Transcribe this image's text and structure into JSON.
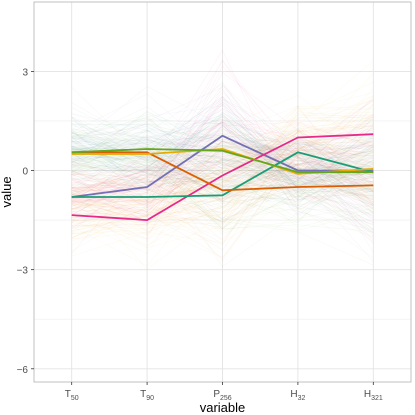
{
  "chart_data": {
    "type": "line",
    "title": "",
    "xlabel": "variable",
    "ylabel": "value",
    "categories": [
      {
        "base": "T",
        "sub": "50"
      },
      {
        "base": "T",
        "sub": "90"
      },
      {
        "base": "P",
        "sub": "256"
      },
      {
        "base": "H",
        "sub": "32"
      },
      {
        "base": "H",
        "sub": "321"
      }
    ],
    "ylim": [
      -6.4,
      5.1
    ],
    "yticks": [
      3,
      0,
      -3,
      -6
    ],
    "ytick_labels": [
      "3",
      "0",
      "−3",
      "−6"
    ],
    "grid": true,
    "legend": "none",
    "background_colors": [
      "#E7298A",
      "#E6AB02",
      "#D95F02",
      "#66A61E",
      "#1B9E77",
      "#7570B3"
    ],
    "series": [
      {
        "color": "#7570B3",
        "values": [
          -0.8,
          -0.5,
          1.05,
          0.0,
          0.0
        ]
      },
      {
        "color": "#E7298A",
        "values": [
          -1.35,
          -1.5,
          -0.15,
          1.0,
          1.1
        ]
      },
      {
        "color": "#1B9E77",
        "values": [
          -0.8,
          -0.8,
          -0.75,
          0.55,
          -0.05
        ]
      },
      {
        "color": "#D95F02",
        "values": [
          0.55,
          0.55,
          -0.6,
          -0.5,
          -0.45
        ]
      },
      {
        "color": "#E6AB02",
        "values": [
          0.5,
          0.5,
          0.65,
          -0.1,
          0.05
        ]
      },
      {
        "color": "#66A61E",
        "values": [
          0.55,
          0.65,
          0.6,
          -0.05,
          -0.05
        ]
      }
    ]
  }
}
